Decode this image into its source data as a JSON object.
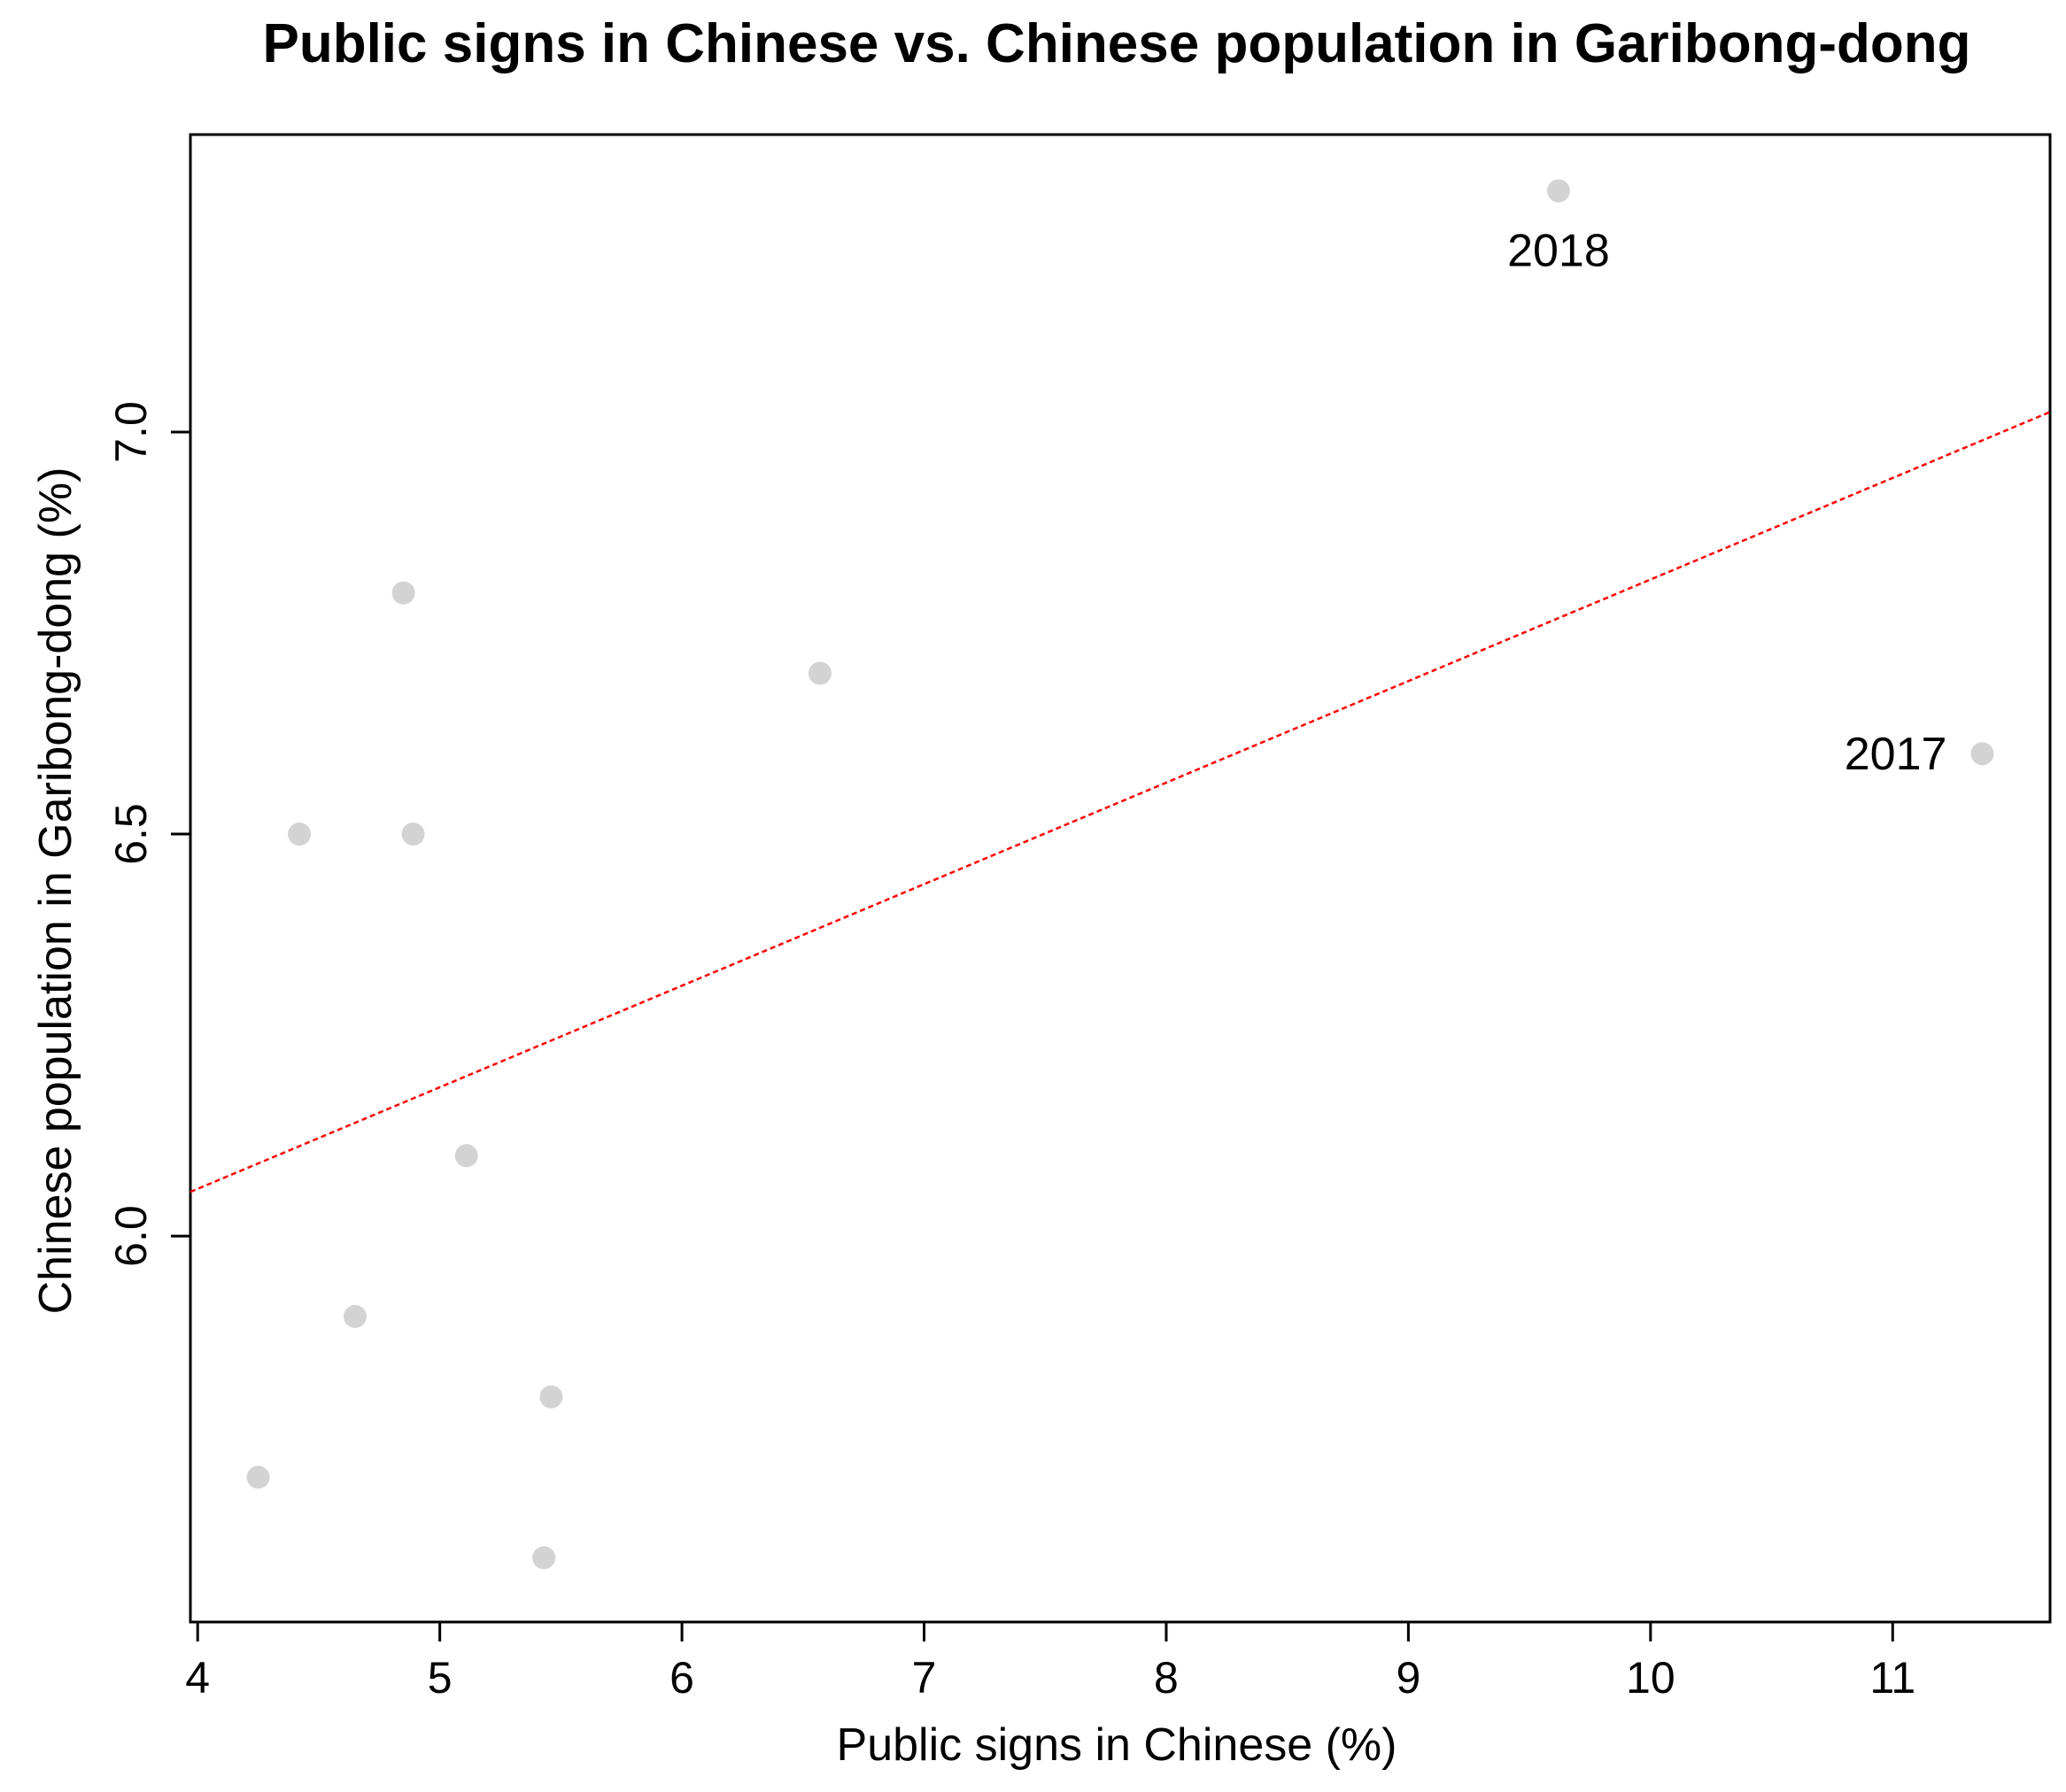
{
  "chart_data": {
    "type": "scatter",
    "title": "Public signs in Chinese vs. Chinese population in Garibong-dong",
    "xlabel": "Public signs in Chinese (%)",
    "ylabel": "Chinese population in Garibong-dong (%)",
    "xlim": [
      3.97,
      11.65
    ],
    "ylim": [
      5.52,
      7.37
    ],
    "x_ticks": [
      4,
      5,
      6,
      7,
      8,
      9,
      10,
      11
    ],
    "y_ticks": [
      6.0,
      6.5,
      7.0
    ],
    "x_tick_labels": [
      "4",
      "5",
      "6",
      "7",
      "8",
      "9",
      "10",
      "11"
    ],
    "y_tick_labels": [
      "6.0",
      "6.5",
      "7.0"
    ],
    "grid": false,
    "points": [
      {
        "x": 4.25,
        "y": 5.7,
        "label": ""
      },
      {
        "x": 4.42,
        "y": 6.5,
        "label": ""
      },
      {
        "x": 4.65,
        "y": 5.9,
        "label": ""
      },
      {
        "x": 4.85,
        "y": 6.8,
        "label": ""
      },
      {
        "x": 4.89,
        "y": 6.5,
        "label": ""
      },
      {
        "x": 5.11,
        "y": 6.1,
        "label": ""
      },
      {
        "x": 5.43,
        "y": 5.6,
        "label": ""
      },
      {
        "x": 5.46,
        "y": 5.8,
        "label": ""
      },
      {
        "x": 6.57,
        "y": 6.7,
        "label": ""
      },
      {
        "x": 9.62,
        "y": 7.3,
        "label": "2018"
      },
      {
        "x": 11.37,
        "y": 6.6,
        "label": "2017"
      }
    ],
    "trendline": {
      "x": [
        3.97,
        11.65
      ],
      "y": [
        6.055,
        7.025
      ]
    },
    "colors": {
      "point": "#d3d3d3",
      "trendline": "#ff0000",
      "axis": "#000000"
    }
  }
}
